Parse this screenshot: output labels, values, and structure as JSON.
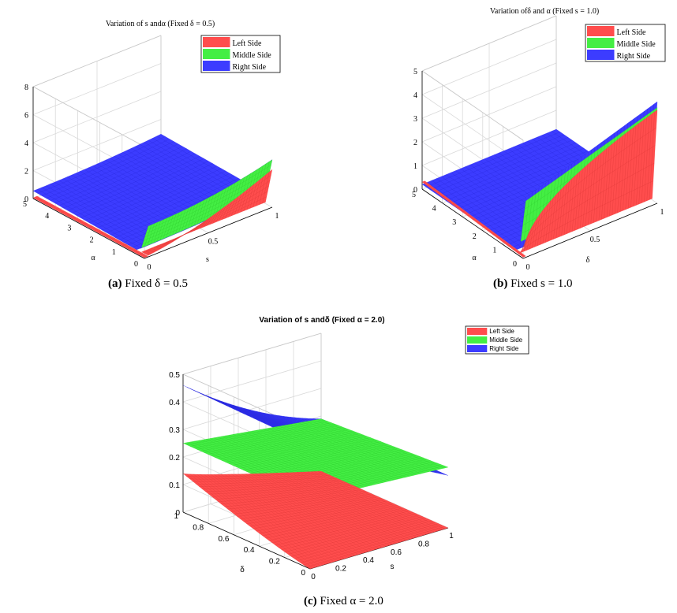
{
  "legend_labels": [
    "Left Side",
    "Middle Side",
    "Right Side"
  ],
  "colors": {
    "left": "#ff4d4d",
    "middle": "#44ee44",
    "right": "#3c3cff",
    "axis": "#000000",
    "grid": "#d9d9d9"
  },
  "chart_data": [
    {
      "type": "surface3d",
      "id": "a",
      "title": "Variation of s andα (Fixed δ = 0.5)",
      "xlabel": "s",
      "ylabel": "α",
      "zlabel": "",
      "xlim": [
        0,
        1
      ],
      "ylim": [
        0,
        5
      ],
      "zlim": [
        0,
        8
      ],
      "x_ticks": [
        "0",
        "0.5",
        "1"
      ],
      "y_ticks": [
        "0",
        "1",
        "2",
        "3",
        "4",
        "5"
      ],
      "z_ticks": [
        "0",
        "2",
        "4",
        "6",
        "8"
      ],
      "caption_label": "(a)",
      "caption_text": "Fixed δ = 0.5",
      "series": [
        {
          "name": "Left Side",
          "at_s_1_alpha_0": 3.3,
          "at_alpha_0_s_0_5": 0.3
        },
        {
          "name": "Middle Side",
          "at_s_1_alpha_0": 3.5,
          "at_alpha_0_s_0_5": 2.6
        },
        {
          "name": "Right Side",
          "at_s_1_alpha_0": 3.7,
          "at_alpha_0_s_0_5": 3.0
        }
      ]
    },
    {
      "type": "surface3d",
      "id": "b",
      "title": "Variation ofδ and α (Fixed s = 1.0)",
      "xlabel": "δ",
      "ylabel": "α",
      "zlabel": "",
      "xlim": [
        0,
        1
      ],
      "ylim": [
        0,
        5
      ],
      "zlim": [
        0,
        5
      ],
      "x_ticks": [
        "0",
        "0.5",
        "1"
      ],
      "y_ticks": [
        "0",
        "1",
        "2",
        "3",
        "4",
        "5"
      ],
      "z_ticks": [
        "0",
        "1",
        "2",
        "3",
        "4",
        "5"
      ],
      "caption_label": "(b)",
      "caption_text": "Fixed s = 1.0",
      "series": [
        {
          "name": "Left Side",
          "at_delta_1_alpha_0": 3.9
        },
        {
          "name": "Middle Side",
          "at_delta_1_alpha_0": 4.1
        },
        {
          "name": "Right Side",
          "at_delta_1_alpha_0": 4.3
        }
      ]
    },
    {
      "type": "surface3d",
      "id": "c",
      "title": "Variation of s andδ (Fixed α = 2.0)",
      "xlabel": "s",
      "ylabel": "δ",
      "zlabel": "",
      "xlim": [
        0,
        1
      ],
      "ylim": [
        0,
        1
      ],
      "zlim": [
        0,
        0.5
      ],
      "x_ticks": [
        "0",
        "0.2",
        "0.4",
        "0.6",
        "0.8",
        "1"
      ],
      "y_ticks": [
        "0",
        "0.2",
        "0.4",
        "0.6",
        "0.8",
        "1"
      ],
      "z_ticks": [
        "0",
        "0.1",
        "0.2",
        "0.3",
        "0.4",
        "0.5"
      ],
      "caption_label": "(c)",
      "caption_text": "Fixed α = 2.0",
      "series": [
        {
          "name": "Left Side",
          "corners": {
            "s0_d0": 0.0,
            "s1_d0": 0.0,
            "s0_d1": 0.14,
            "s1_d1": 0.0
          }
        },
        {
          "name": "Middle Side",
          "corners": {
            "s0_d0": 0.25,
            "s1_d0": 0.22,
            "s0_d1": 0.25,
            "s1_d1": 0.19
          }
        },
        {
          "name": "Right Side",
          "corners": {
            "s0_d0": 0.45,
            "s1_d0": 0.19,
            "s0_d1": 0.46,
            "s1_d1": 0.19
          }
        }
      ]
    }
  ]
}
